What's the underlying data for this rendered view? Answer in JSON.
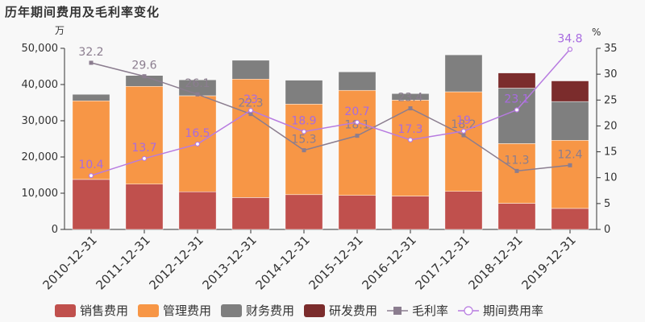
{
  "title": "历年期间费用及毛利率变化",
  "chart_data": {
    "type": "bar",
    "stacked": true,
    "title": "历年期间费用及毛利率变化",
    "categories": [
      "2010-12-31",
      "2011-12-31",
      "2012-12-31",
      "2013-12-31",
      "2014-12-31",
      "2015-12-31",
      "2016-12-31",
      "2017-12-31",
      "2018-12-31",
      "2019-12-31"
    ],
    "y_left": {
      "unit": "万",
      "min": 0,
      "max": 50000,
      "ticks": [
        0,
        10000,
        20000,
        30000,
        40000,
        50000
      ],
      "tick_labels": [
        "0",
        "10,000",
        "20,000",
        "30,000",
        "40,000",
        "50,000"
      ]
    },
    "y_right": {
      "unit": "%",
      "min": 0,
      "max": 35,
      "ticks": [
        0,
        5,
        10,
        15,
        20,
        25,
        30,
        35
      ],
      "tick_labels": [
        "0",
        "5",
        "10",
        "15",
        "20",
        "25",
        "30",
        "35"
      ]
    },
    "bar_series": [
      {
        "name": "销售费用",
        "color": "#c0504d",
        "values": [
          13800,
          12500,
          10400,
          8800,
          9600,
          9400,
          9200,
          10500,
          7200,
          5800
        ]
      },
      {
        "name": "管理费用",
        "color": "#f79646",
        "values": [
          21700,
          27000,
          26500,
          32700,
          25000,
          29000,
          26500,
          27500,
          16500,
          18800
        ]
      },
      {
        "name": "财务费用",
        "color": "#7f7f7f",
        "values": [
          1800,
          3000,
          4400,
          5200,
          6600,
          5100,
          1800,
          10200,
          15300,
          10700
        ]
      },
      {
        "name": "研发费用",
        "color": "#7b2c2c",
        "values": [
          0,
          0,
          0,
          0,
          0,
          0,
          0,
          0,
          4200,
          5700
        ]
      }
    ],
    "line_series": [
      {
        "name": "毛利率",
        "color": "#8b7d8f",
        "marker": "square",
        "label_color": "#8b7d8f",
        "values": [
          32.2,
          29.6,
          26.1,
          22.3,
          15.3,
          18.1,
          23.4,
          18.2,
          11.3,
          12.4
        ],
        "labels": [
          "32.2",
          "29.6",
          "26.1",
          "22.3",
          "15.3",
          "18.1",
          "23.4",
          "18.2",
          "11.3",
          "12.4"
        ]
      },
      {
        "name": "期间费用率",
        "color": "#b77be0",
        "marker": "circle",
        "label_color": "#a86be0",
        "values": [
          10.4,
          13.7,
          16.5,
          23,
          18.9,
          20.7,
          17.3,
          19,
          23.1,
          34.8
        ],
        "labels": [
          "10.4",
          "13.7",
          "16.5",
          "23",
          "18.9",
          "20.7",
          "17.3",
          "19",
          "23.1",
          "34.8"
        ]
      }
    ],
    "legend_position": "bottom",
    "grid": false
  }
}
